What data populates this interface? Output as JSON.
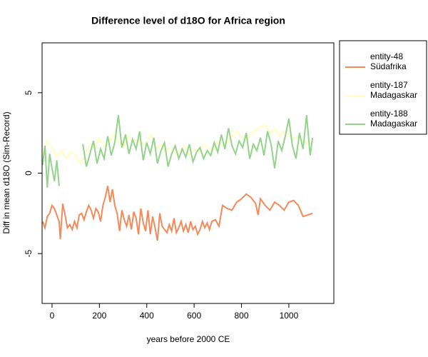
{
  "chart_data": {
    "type": "line",
    "title": "Difference level of d18O for Africa region",
    "x_label": "years before 2000 CE",
    "y_label": "Diff in mean d18O (Sim-Record)",
    "xlim": [
      -42,
      1190
    ],
    "ylim": [
      -8.1,
      8.1
    ],
    "xticks": [
      0,
      200,
      400,
      600,
      800,
      1000
    ],
    "yticks": [
      -5,
      0,
      5
    ],
    "legend_position": "outside-right",
    "series": [
      {
        "name": "entity-48",
        "site": "Südafrika",
        "color": "#f4895a",
        "x": [
          -40,
          -30,
          -20,
          -10,
          0,
          10,
          20,
          30,
          35,
          45,
          55,
          65,
          75,
          85,
          95,
          105,
          115,
          125,
          135,
          145,
          155,
          165,
          175,
          185,
          195,
          205,
          215,
          225,
          235,
          245,
          255,
          265,
          275,
          285,
          295,
          305,
          315,
          325,
          335,
          345,
          355,
          365,
          375,
          385,
          395,
          405,
          415,
          425,
          435,
          445,
          455,
          465,
          475,
          485,
          495,
          505,
          515,
          525,
          535,
          545,
          555,
          565,
          575,
          585,
          595,
          605,
          615,
          625,
          635,
          645,
          655,
          665,
          675,
          690,
          705,
          720,
          740,
          760,
          780,
          800,
          820,
          840,
          860,
          870,
          880,
          900,
          920,
          940,
          960,
          980,
          1000,
          1020,
          1040,
          1060,
          1080,
          1100
        ],
        "values": [
          -3.0,
          -3.4,
          -2.7,
          -2.5,
          -2.0,
          -2.2,
          -2.6,
          -3.0,
          -4.1,
          -1.9,
          -2.6,
          -3.4,
          -3.2,
          -3.5,
          -3.0,
          -3.4,
          -2.6,
          -2.5,
          -2.9,
          -2.4,
          -2.0,
          -2.3,
          -2.8,
          -2.2,
          -2.4,
          -3.0,
          -2.0,
          -1.5,
          -0.8,
          -1.8,
          -1.0,
          -2.0,
          -2.5,
          -3.6,
          -2.3,
          -2.9,
          -3.3,
          -2.6,
          -3.5,
          -2.4,
          -2.8,
          -3.8,
          -2.2,
          -3.1,
          -3.6,
          -2.3,
          -3.8,
          -2.7,
          -3.4,
          -4.2,
          -2.5,
          -3.3,
          -3.5,
          -3.7,
          -3.2,
          -3.6,
          -2.8,
          -3.7,
          -3.4,
          -3.0,
          -3.6,
          -3.2,
          -3.7,
          -3.0,
          -3.5,
          -3.3,
          -3.8,
          -3.5,
          -3.0,
          -3.4,
          -3.1,
          -3.5,
          -3.0,
          -2.9,
          -3.3,
          -2.0,
          -2.2,
          -2.3,
          -1.8,
          -1.6,
          -1.3,
          -1.5,
          -1.9,
          -2.6,
          -1.6,
          -2.0,
          -2.3,
          -1.8,
          -2.0,
          -2.3,
          -1.8,
          -1.7,
          -2.0,
          -2.7,
          -2.6,
          -2.5
        ]
      },
      {
        "name": "entity-187",
        "site": "Madagaskar",
        "color": "#ffffbf",
        "x": [
          -40,
          -20,
          0,
          20,
          40,
          60,
          80,
          100,
          120,
          140,
          160,
          180,
          200,
          220,
          240,
          260,
          280,
          300,
          320,
          340,
          360,
          380,
          400,
          420,
          440,
          460,
          480,
          500,
          520,
          540,
          560,
          580,
          600,
          620,
          640,
          660,
          680,
          700,
          720,
          740,
          760,
          780,
          800,
          820,
          840,
          860,
          880,
          900,
          920,
          940,
          960,
          980,
          1000,
          1020,
          1040,
          1060,
          1080,
          1100
        ],
        "values": [
          1.2,
          2.0,
          1.6,
          1.0,
          1.4,
          0.9,
          1.3,
          1.1,
          0.6,
          1.2,
          1.8,
          1.5,
          2.2,
          1.7,
          1.9,
          2.4,
          2.0,
          1.6,
          2.3,
          1.9,
          2.1,
          1.7,
          2.0,
          2.4,
          1.5,
          1.8,
          1.3,
          1.6,
          1.2,
          1.4,
          1.7,
          1.1,
          1.5,
          1.3,
          1.8,
          1.6,
          1.4,
          2.0,
          1.7,
          1.9,
          2.3,
          2.6,
          2.2,
          2.0,
          2.4,
          2.7,
          2.9,
          3.0,
          2.5,
          2.8,
          2.3,
          2.6,
          2.4,
          2.1,
          2.3,
          2.0,
          1.8,
          1.9
        ]
      },
      {
        "name": "entity-188",
        "site": "Madagaskar",
        "color": "#94d38c",
        "x": [
          -40,
          -30,
          -20,
          -10,
          0,
          10,
          20,
          30,
          80,
          130,
          145,
          160,
          175,
          190,
          205,
          220,
          235,
          250,
          265,
          280,
          295,
          310,
          325,
          340,
          355,
          370,
          385,
          400,
          415,
          430,
          445,
          460,
          475,
          490,
          505,
          520,
          535,
          550,
          565,
          580,
          595,
          610,
          625,
          640,
          655,
          670,
          685,
          700,
          715,
          730,
          745,
          760,
          775,
          790,
          805,
          820,
          835,
          850,
          865,
          880,
          895,
          910,
          925,
          940,
          955,
          970,
          985,
          1000,
          1015,
          1030,
          1045,
          1060,
          1075,
          1090,
          1100
        ],
        "values": [
          0.5,
          1.7,
          -0.9,
          1.2,
          0.3,
          -0.5,
          0.8,
          -0.8,
          null,
          1.8,
          0.4,
          1.2,
          2.0,
          0.6,
          1.5,
          0.9,
          2.3,
          1.1,
          1.9,
          3.6,
          1.6,
          2.4,
          1.2,
          2.1,
          1.5,
          2.6,
          0.8,
          1.9,
          1.2,
          2.2,
          0.6,
          1.4,
          1.9,
          0.4,
          1.2,
          1.7,
          0.9,
          1.5,
          1.0,
          1.8,
          0.7,
          1.3,
          1.6,
          0.9,
          1.4,
          1.1,
          1.9,
          1.3,
          2.4,
          1.5,
          2.8,
          1.7,
          1.2,
          2.0,
          1.6,
          2.5,
          0.9,
          1.8,
          1.4,
          2.2,
          1.1,
          2.6,
          1.8,
          0.3,
          2.0,
          1.4,
          2.3,
          3.4,
          1.7,
          0.9,
          2.5,
          1.5,
          3.6,
          1.1,
          2.2
        ]
      }
    ]
  }
}
